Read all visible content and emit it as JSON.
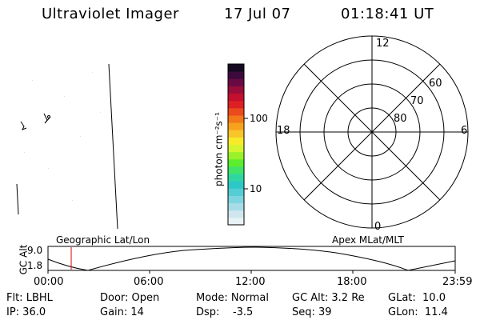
{
  "header": {
    "title": "Ultraviolet Imager",
    "date": "17 Jul 07",
    "time": "01:18:41 UT"
  },
  "colorbar": {
    "label": "photon cm⁻²s⁻¹",
    "ticks": [
      {
        "value": 100,
        "label": "100"
      },
      {
        "value": 10,
        "label": "10"
      }
    ],
    "colors": [
      "#e9f2f5",
      "#cfe6ee",
      "#a8dce8",
      "#7fd5df",
      "#55cdd4",
      "#2ec7c7",
      "#2fd7a0",
      "#41e36a",
      "#5ced2e",
      "#9af12a",
      "#d5f430",
      "#f7ea2a",
      "#f8c62a",
      "#f7a21e",
      "#f2781a",
      "#ea4a1c",
      "#dc2024",
      "#c4102e",
      "#9a0d3a",
      "#6a0a42",
      "#3c0a3c",
      "#160a22"
    ]
  },
  "polar_plot": {
    "clock_labels": {
      "top": "12",
      "left": "18",
      "right": "6",
      "bottom": "0"
    },
    "lat_labels": [
      "60",
      "70",
      "80"
    ]
  },
  "timeline": {
    "left_label": "Geographic Lat/Lon",
    "right_label": "Apex MLat/MLT",
    "y_axis_label": "GC Alt",
    "y_ticks": [
      "9.0",
      "1.8"
    ],
    "x_ticks": [
      "00:00",
      "06:00",
      "12:00",
      "18:00",
      "23:59"
    ],
    "marker_time": "01:18",
    "marker_color": "#dd0000"
  },
  "info": {
    "filter": "Flt: LBHL",
    "ip": "IP: 36.0",
    "door": "Door: Open",
    "gain": "Gain: 14",
    "mode": "Mode: Normal",
    "dsp": "Dsp:    -3.5",
    "gc_alt": "GC Alt: 3.2 Re",
    "seq": "Seq: 39",
    "glat": "GLat:  10.0",
    "glon": "GLon:  11.4"
  }
}
